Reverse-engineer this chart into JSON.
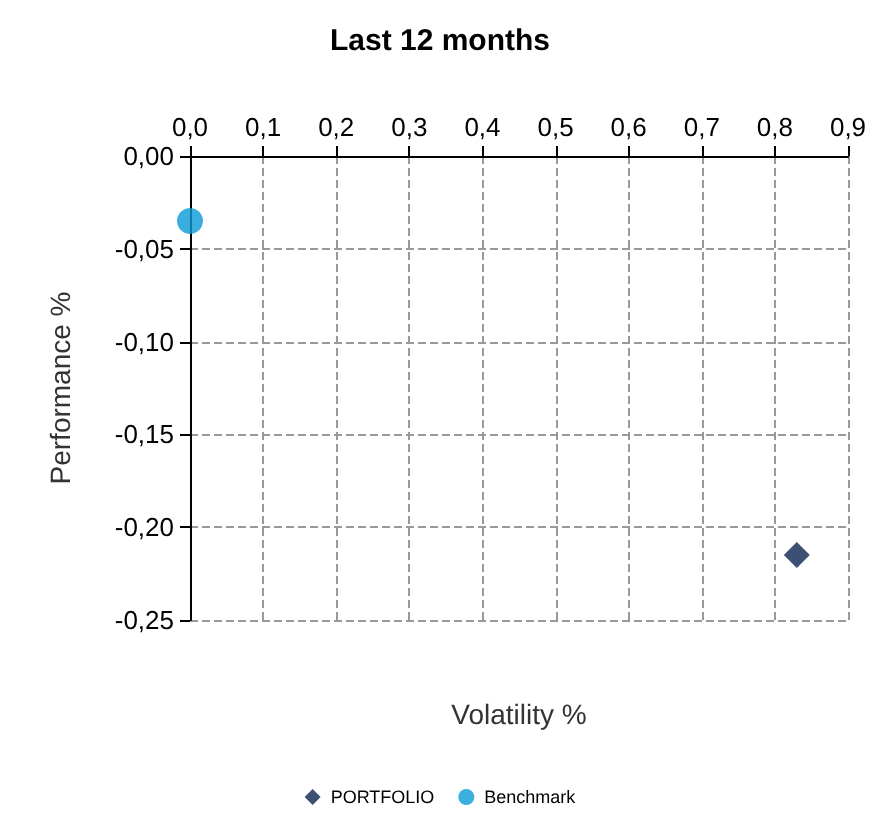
{
  "chart_data": {
    "type": "scatter",
    "title": "Last 12 months",
    "xlabel": "Volatility %",
    "ylabel": "Performance %",
    "series": [
      {
        "name": "PORTFOLIO",
        "color": "#0d2350",
        "marker": "diamond",
        "x": [
          0.83
        ],
        "values": [
          -0.215
        ]
      },
      {
        "name": "Benchmark",
        "color": "#0a9ad8",
        "marker": "circle",
        "x": [
          0.0
        ],
        "values": [
          -0.035
        ]
      }
    ],
    "xlim": [
      0,
      0.9
    ],
    "xticks": [
      {
        "value": 0,
        "label": "0,0"
      },
      {
        "value": 0.1,
        "label": "0,1"
      },
      {
        "value": 0.2,
        "label": "0,2"
      },
      {
        "value": 0.3,
        "label": "0,3"
      },
      {
        "value": 0.4,
        "label": "0,4"
      },
      {
        "value": 0.5,
        "label": "0,5"
      },
      {
        "value": 0.6,
        "label": "0,6"
      },
      {
        "value": 0.7,
        "label": "0,7"
      },
      {
        "value": 0.8,
        "label": "0,8"
      },
      {
        "value": 0.9,
        "label": "0,9"
      }
    ],
    "ylim": [
      -0.25,
      0
    ],
    "yticks": [
      {
        "value": -0.25,
        "label": "-0,25"
      },
      {
        "value": -0.2,
        "label": "-0,20"
      },
      {
        "value": -0.15,
        "label": "-0,15"
      },
      {
        "value": -0.1,
        "label": "-0,10"
      },
      {
        "value": -0.05,
        "label": "-0,05"
      },
      {
        "value": 0,
        "label": "0,00"
      }
    ],
    "grid": true,
    "legend": "bottom"
  }
}
